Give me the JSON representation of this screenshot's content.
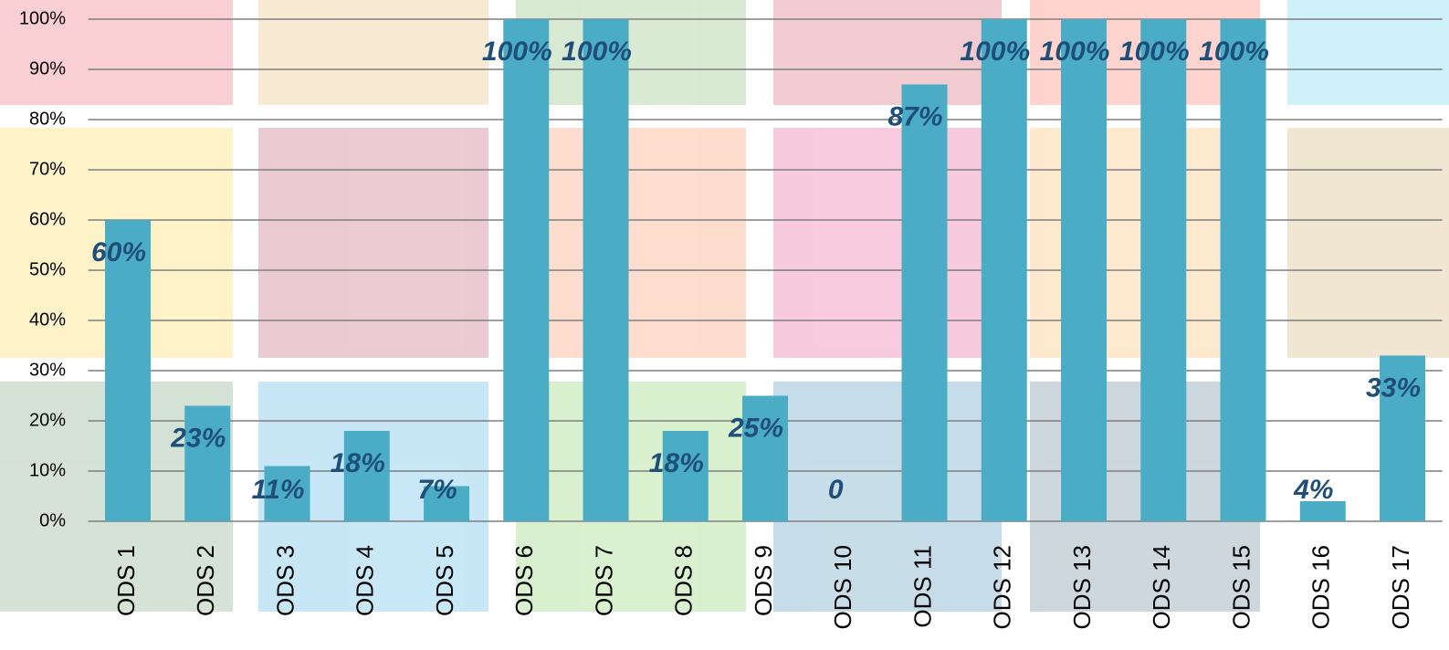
{
  "chart_data": {
    "type": "bar",
    "categories": [
      "ODS 1",
      "ODS 2",
      "ODS 3",
      "ODS 4",
      "ODS 5",
      "ODS 6",
      "ODS 7",
      "ODS 8",
      "ODS 9",
      "ODS 10",
      "ODS 11",
      "ODS 12",
      "ODS 13",
      "ODS 14",
      "ODS 15",
      "ODS 16",
      "ODS 17"
    ],
    "values": [
      60,
      23,
      11,
      18,
      7,
      100,
      100,
      18,
      25,
      0,
      87,
      100,
      100,
      100,
      100,
      4,
      33
    ],
    "value_labels": [
      "60%",
      "23%",
      "11%",
      "18%",
      "7%",
      "100%",
      "100%",
      "18%",
      "25%",
      "0",
      "87%",
      "100%",
      "100%",
      "100%",
      "100%",
      "4%",
      "33%"
    ],
    "color": "#4bacc6",
    "ylim": [
      0,
      100
    ],
    "yticks": [
      {
        "value": 0,
        "label": "0%"
      },
      {
        "value": 10,
        "label": "10%"
      },
      {
        "value": 20,
        "label": "20%"
      },
      {
        "value": 30,
        "label": "30%"
      },
      {
        "value": 40,
        "label": "40%"
      },
      {
        "value": 50,
        "label": "50%"
      },
      {
        "value": 60,
        "label": "60%"
      },
      {
        "value": 70,
        "label": "70%"
      },
      {
        "value": 80,
        "label": "80%"
      },
      {
        "value": 90,
        "label": "90%"
      },
      {
        "value": 100,
        "label": "100%"
      }
    ],
    "grid": true
  }
}
